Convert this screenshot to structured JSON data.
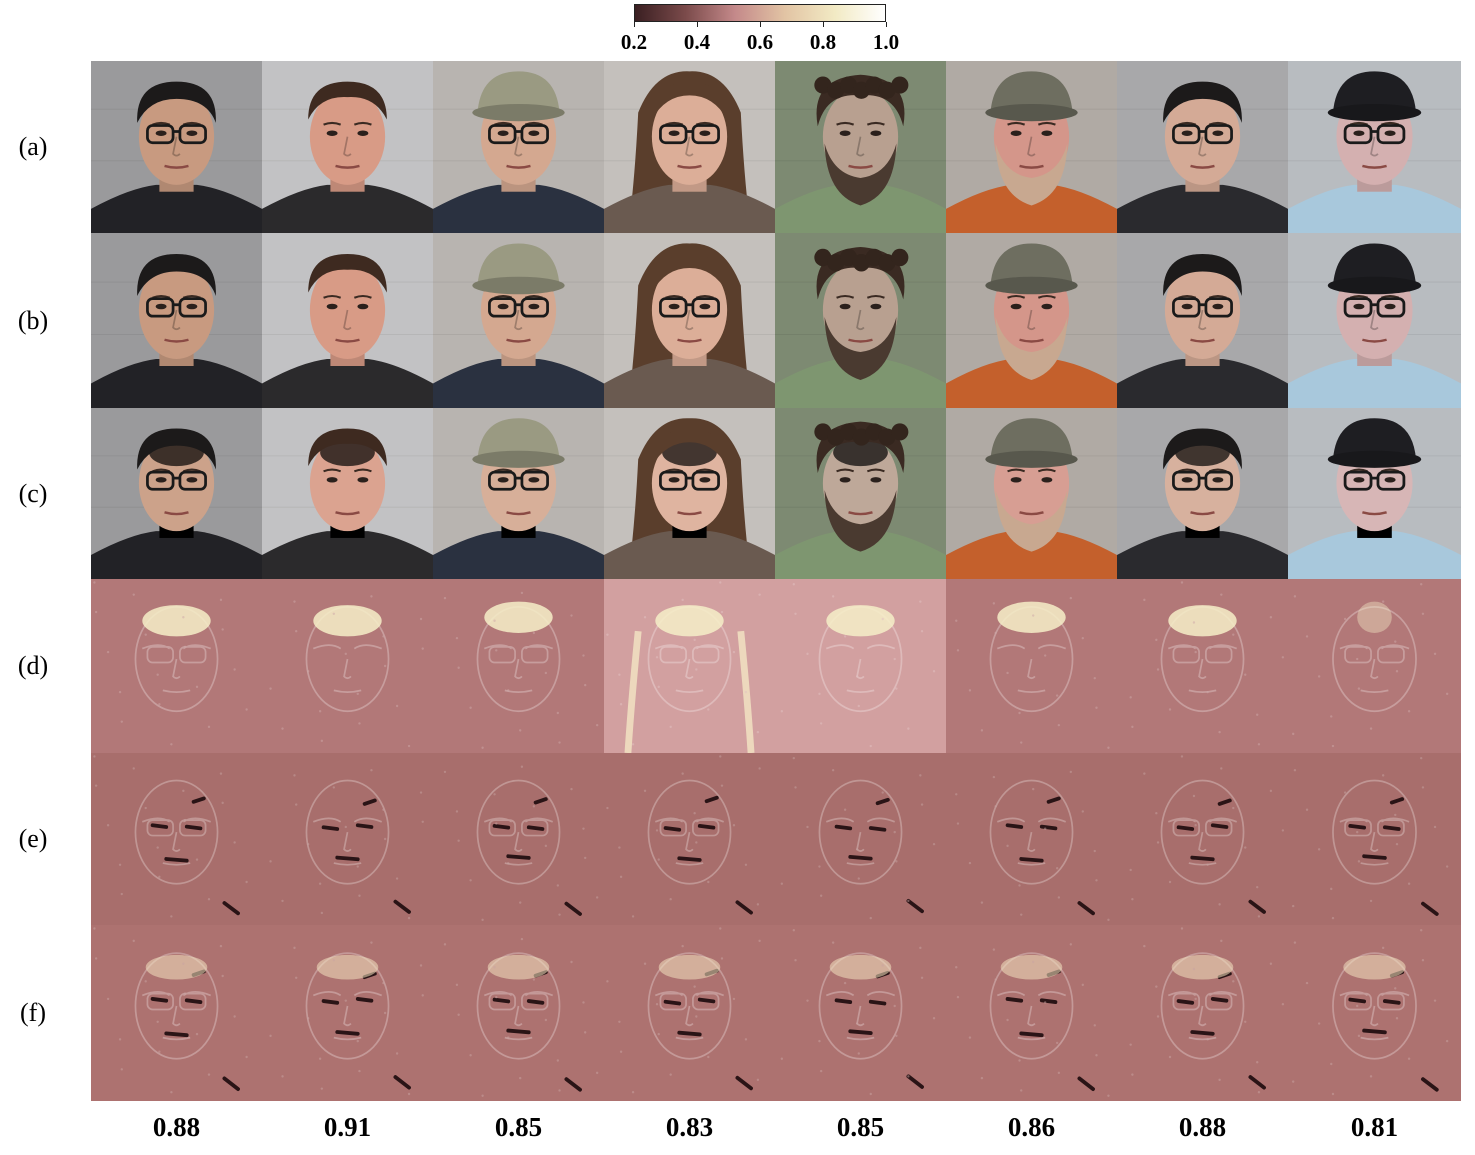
{
  "colorbar": {
    "ticks": [
      "0.2",
      "0.4",
      "0.6",
      "0.8",
      "1.0"
    ],
    "stops": [
      "#3a1f22",
      "#7a4a4a",
      "#c4898a",
      "#e2c4a4",
      "#f2eac4",
      "#ffffff"
    ]
  },
  "rows": [
    {
      "label": "(a)",
      "kind": "original"
    },
    {
      "label": "(b)",
      "kind": "original"
    },
    {
      "label": "(c)",
      "kind": "altered"
    },
    {
      "label": "(d)",
      "kind": "heatmap-bright"
    },
    {
      "label": "(e)",
      "kind": "heatmap-dark"
    },
    {
      "label": "(f)",
      "kind": "heatmap-mixed"
    }
  ],
  "columns": [
    {
      "score": "0.88",
      "hair": "dark",
      "hat": false,
      "glasses": true,
      "beard": false,
      "shirt": "#222226",
      "bg": "#9a9a9c",
      "skin": "#c89a80"
    },
    {
      "score": "0.91",
      "hair": "brown",
      "hat": false,
      "glasses": false,
      "beard": false,
      "shirt": "#2b2a2c",
      "bg": "#c2c2c4",
      "skin": "#d89b86"
    },
    {
      "score": "0.85",
      "hair": "none",
      "hat": true,
      "hatColor": "#9a9a82",
      "glasses": true,
      "beard": false,
      "shirt": "#2a3140",
      "bg": "#b8b4b0",
      "skin": "#d4a890"
    },
    {
      "score": "0.83",
      "hair": "long",
      "hat": false,
      "glasses": true,
      "beard": false,
      "shirt": "#6a5a50",
      "bg": "#c4c0bc",
      "skin": "#dcae98"
    },
    {
      "score": "0.85",
      "hair": "curly",
      "hat": false,
      "glasses": false,
      "beard": true,
      "beardColor": "#4a3a30",
      "shirt": "#7e9670",
      "bg": "#7d8a72",
      "skin": "#b8a090"
    },
    {
      "score": "0.86",
      "hair": "none",
      "hat": true,
      "hatColor": "#6e6e60",
      "glasses": false,
      "beard": true,
      "beardColor": "#c8a890",
      "shirt": "#c4602c",
      "bg": "#b0aaa4",
      "skin": "#d4968a"
    },
    {
      "score": "0.88",
      "hair": "dark",
      "hat": false,
      "glasses": true,
      "beard": false,
      "shirt": "#2a2a2e",
      "bg": "#a8a8aa",
      "skin": "#d4aa96"
    },
    {
      "score": "0.81",
      "hair": "none",
      "hat": true,
      "hatColor": "#1e1e22",
      "glasses": true,
      "beard": false,
      "shirt": "#a8c8dc",
      "bg": "#b8bcc0",
      "skin": "#d4b0b0"
    }
  ]
}
